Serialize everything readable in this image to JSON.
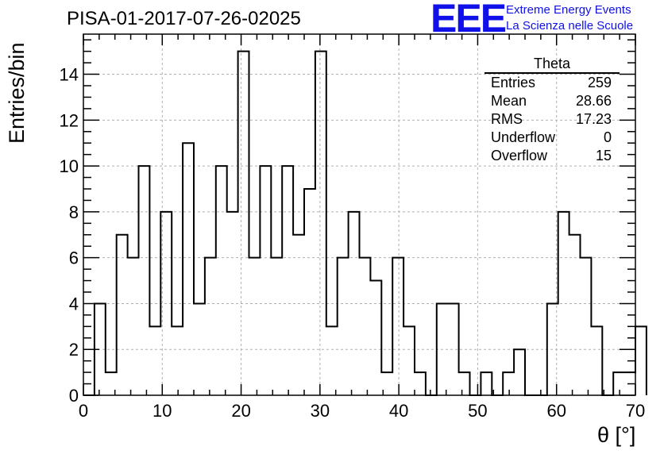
{
  "title": "PISA-01-2017-07-26-02025",
  "logo": {
    "mark": "EEE",
    "line1": "Extreme Energy Events",
    "line2": "La Scienza nelle Scuole",
    "color": "#1010e8"
  },
  "stats_box": {
    "name": "Theta",
    "rows": [
      {
        "label": "Entries",
        "value": "259"
      },
      {
        "label": "Mean",
        "value": "28.66"
      },
      {
        "label": "RMS",
        "value": "17.23"
      },
      {
        "label": "Underflow",
        "value": "0"
      },
      {
        "label": "Overflow",
        "value": "15"
      }
    ]
  },
  "chart_data": {
    "type": "histogram",
    "xlabel": "θ [°]",
    "ylabel": "Entries/bin",
    "xlim": [
      0,
      70
    ],
    "ylim": [
      0,
      15.75
    ],
    "bin_width": 1.4,
    "bin_start": 0,
    "x_ticks": [
      0,
      10,
      20,
      30,
      40,
      50,
      60,
      70
    ],
    "y_ticks": [
      0,
      2,
      4,
      6,
      8,
      10,
      12,
      14
    ],
    "grid": true,
    "line_color": "#000000",
    "values": [
      0,
      4,
      1,
      7,
      6,
      10,
      3,
      8,
      3,
      11,
      4,
      6,
      10,
      8,
      15,
      6,
      10,
      6,
      10,
      7,
      9,
      15,
      3,
      6,
      8,
      6,
      5,
      1,
      6,
      3,
      1,
      0,
      4,
      4,
      1,
      0,
      1,
      0,
      1,
      2,
      0,
      0,
      4,
      8,
      7,
      6,
      3,
      0,
      1,
      1,
      3
    ]
  }
}
